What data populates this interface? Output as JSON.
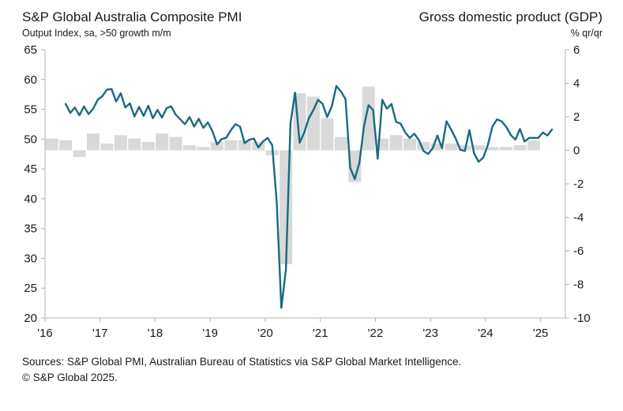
{
  "header": {
    "left_title": "S&P Global Australia Composite PMI",
    "left_subtitle": "Output Index, sa, >50 growth m/m",
    "right_title": "Gross domestic product (GDP)",
    "right_subtitle": "% qr/qr"
  },
  "footer": {
    "sources": "Sources: S&P Global PMI, Australian Bureau of Statistics via S&P Global Market Intelligence.",
    "copyright": "© S&P Global 2025."
  },
  "chart_data": {
    "type": "line+bar",
    "title": "S&P Global Australia Composite PMI vs Gross domestic product (GDP)",
    "left_axis": {
      "label": "Output Index, sa, >50 growth m/m",
      "range": [
        20,
        65
      ],
      "ticks": [
        65,
        60,
        55,
        50,
        45,
        40,
        35,
        30,
        25,
        20
      ]
    },
    "right_axis": {
      "label": "% qr/qr",
      "range": [
        -10,
        6
      ],
      "ticks": [
        6,
        4,
        2,
        0,
        -2,
        -4,
        -6,
        -8,
        -10
      ]
    },
    "x_axis": {
      "labels": [
        "'16",
        "'17",
        "'18",
        "'19",
        "'20",
        "'21",
        "'22",
        "'23",
        "'24",
        "'25"
      ],
      "years": [
        2016,
        2017,
        2018,
        2019,
        2020,
        2021,
        2022,
        2023,
        2024,
        2025
      ],
      "domain": [
        2016,
        2025.45
      ]
    },
    "grid": false,
    "legend": false,
    "colors": {
      "pmi_line": "#176b80",
      "gdp_bar": "#d9d9d9",
      "axis": "#b3b3b3",
      "text": "#1a1a1a"
    },
    "series": [
      {
        "name": "Composite PMI Output Index (left axis, monthly)",
        "type": "line",
        "axis": "left",
        "start_year": 2016,
        "start_month": 5,
        "monthly_values": [
          55.9,
          54.4,
          55.3,
          54.0,
          55.5,
          54.2,
          55.1,
          56.6,
          57.2,
          58.3,
          58.4,
          56.3,
          57.7,
          55.3,
          56.0,
          53.8,
          55.4,
          53.9,
          55.6,
          53.5,
          54.9,
          53.6,
          55.2,
          55.5,
          54.1,
          53.3,
          52.5,
          53.7,
          52.1,
          53.4,
          51.9,
          52.8,
          51.3,
          49.1,
          50.0,
          50.2,
          51.5,
          52.5,
          52.1,
          49.3,
          49.9,
          50.1,
          48.6,
          49.6,
          50.2,
          49.0,
          39.4,
          21.7,
          28.1,
          52.7,
          57.8,
          49.4,
          51.1,
          53.5,
          54.9,
          56.6,
          55.9,
          53.7,
          55.5,
          58.9,
          58.0,
          56.7,
          45.2,
          43.3,
          46.0,
          52.1,
          55.7,
          54.9,
          46.7,
          56.6,
          55.1,
          55.9,
          52.9,
          52.6,
          51.1,
          50.2,
          50.9,
          49.8,
          48.0,
          47.5,
          48.5,
          50.6,
          48.5,
          53.0,
          51.6,
          50.1,
          48.2,
          48.0,
          51.5,
          47.6,
          46.2,
          46.9,
          49.0,
          52.1,
          53.3,
          53.0,
          52.1,
          50.7,
          49.9,
          51.7,
          49.6,
          50.2,
          50.2,
          50.2,
          51.1,
          50.6,
          51.6
        ]
      },
      {
        "name": "GDP % qr/qr (right axis, quarterly)",
        "type": "bar",
        "axis": "right",
        "start_year": 2016,
        "start_quarter": 1,
        "quarterly_values": [
          0.7,
          0.6,
          -0.4,
          1.0,
          0.4,
          0.9,
          0.7,
          0.5,
          1.0,
          0.8,
          0.3,
          0.2,
          0.5,
          0.6,
          0.6,
          0.5,
          -0.3,
          -6.8,
          3.4,
          3.2,
          1.9,
          0.8,
          -1.9,
          3.8,
          0.7,
          0.9,
          0.7,
          0.5,
          0.4,
          0.4,
          0.3,
          0.3,
          0.2,
          0.2,
          0.3,
          0.6
        ]
      }
    ]
  }
}
